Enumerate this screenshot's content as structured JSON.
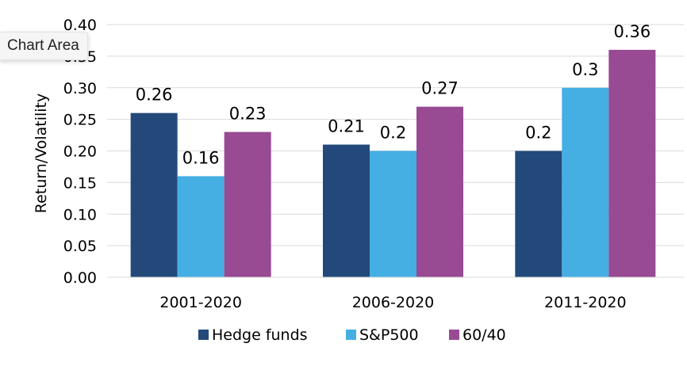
{
  "tooltip": {
    "label": "Chart Area"
  },
  "colors": {
    "Hedge funds": "#23497a",
    "S&P500": "#45aee2",
    "60/40": "#984a92",
    "grid": "#d9d9d9",
    "text": "#000000"
  },
  "chart_data": {
    "type": "bar",
    "categories": [
      "2001-2020",
      "2006-2020",
      "2011-2020"
    ],
    "series": [
      {
        "name": "Hedge funds",
        "values": [
          0.26,
          0.21,
          0.2
        ]
      },
      {
        "name": "S&P500",
        "values": [
          0.16,
          0.2,
          0.3
        ]
      },
      {
        "name": "60/40",
        "values": [
          0.23,
          0.27,
          0.36
        ]
      }
    ],
    "data_labels": [
      [
        "0.26",
        "0.21",
        "0.2"
      ],
      [
        "0.16",
        "0.2",
        "0.3"
      ],
      [
        "0.23",
        "0.27",
        "0.36"
      ]
    ],
    "ylabel": "Return/Volatility",
    "xlabel": "",
    "ylim": [
      0,
      0.4
    ],
    "yticks": [
      "0.00",
      "0.05",
      "0.10",
      "0.15",
      "0.20",
      "0.25",
      "0.30",
      "0.35",
      "0.40"
    ],
    "grid": true,
    "legend_position": "bottom"
  }
}
